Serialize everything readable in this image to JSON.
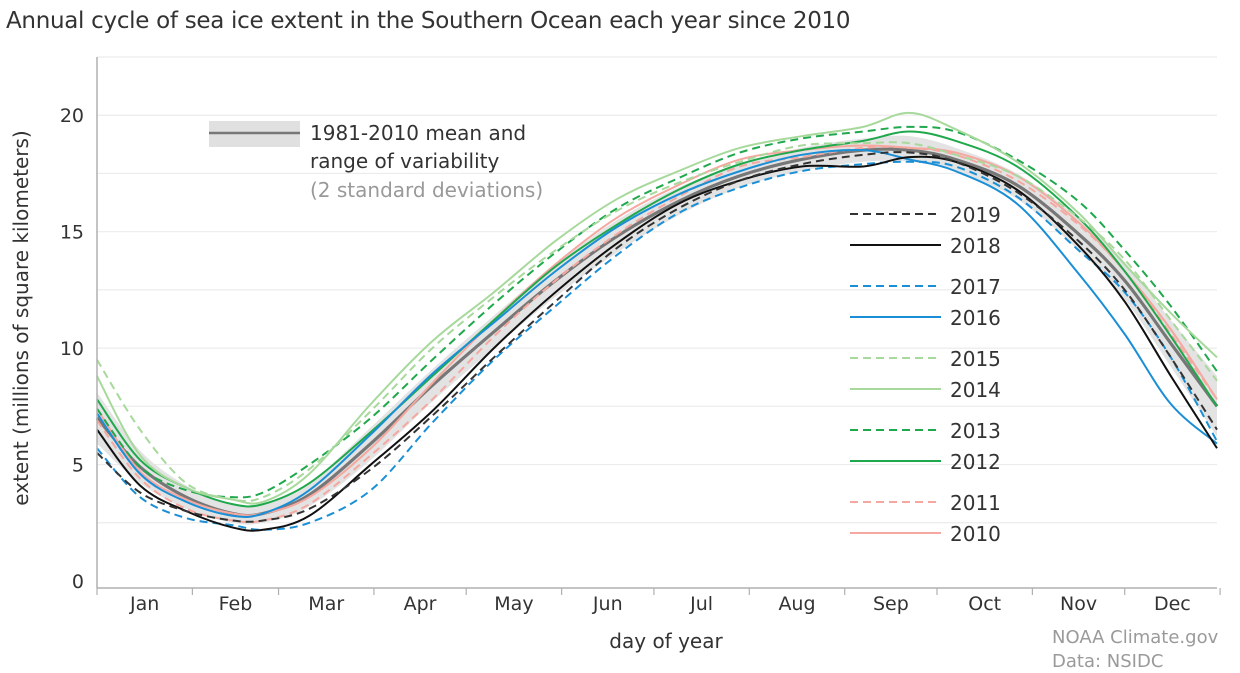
{
  "chart_data": {
    "type": "line",
    "title": "Annual cycle of sea ice extent in the Southern Ocean each year since 2010",
    "xlabel": "day of year",
    "ylabel": "extent (millions of square kilometers)",
    "xlim": [
      1,
      365
    ],
    "ylim": [
      0,
      22.5
    ],
    "yticks": [
      0,
      5,
      10,
      15,
      20
    ],
    "grid_y_step": 2.5,
    "months": [
      "Jan",
      "Feb",
      "Mar",
      "Apr",
      "May",
      "Jun",
      "Jul",
      "Aug",
      "Sep",
      "Oct",
      "Nov",
      "Dec"
    ],
    "month_starts": [
      1,
      32,
      60,
      91,
      121,
      152,
      182,
      213,
      244,
      274,
      305,
      335,
      366
    ],
    "legend_mean": {
      "line1": "1981-2010 mean and",
      "line2": "range of variability",
      "line3": "(2 standard deviations)"
    },
    "mean": {
      "name": "1981-2010 mean",
      "color": "#777777",
      "x": [
        1,
        15,
        30,
        45,
        55,
        70,
        90,
        110,
        130,
        150,
        170,
        190,
        210,
        230,
        250,
        265,
        280,
        300,
        320,
        335,
        350,
        365
      ],
      "y": [
        7.0,
        4.9,
        3.6,
        2.9,
        2.9,
        3.7,
        5.9,
        8.4,
        10.7,
        12.9,
        14.8,
        16.3,
        17.4,
        18.1,
        18.5,
        18.5,
        18.1,
        17.0,
        14.9,
        12.9,
        10.2,
        7.5
      ],
      "band_lower": [
        5.9,
        4.2,
        3.1,
        2.5,
        2.5,
        3.2,
        5.2,
        7.7,
        10.0,
        12.2,
        14.1,
        15.7,
        16.9,
        17.6,
        18.0,
        18.0,
        17.6,
        16.4,
        14.2,
        12.1,
        9.2,
        6.2
      ],
      "band_upper": [
        8.1,
        5.6,
        4.1,
        3.3,
        3.3,
        4.2,
        6.6,
        9.1,
        11.4,
        13.6,
        15.5,
        16.9,
        17.9,
        18.6,
        19.0,
        19.1,
        18.6,
        17.5,
        15.6,
        13.7,
        11.2,
        8.8
      ]
    },
    "series": [
      {
        "name": "2019",
        "color": "#333333",
        "dash": true,
        "x": [
          1,
          15,
          30,
          45,
          55,
          70,
          90,
          110,
          130,
          150,
          170,
          190,
          210,
          230,
          250,
          265,
          280,
          300,
          320,
          335,
          350,
          365
        ],
        "y": [
          5.5,
          3.8,
          3.0,
          2.6,
          2.6,
          3.1,
          4.8,
          7.1,
          9.6,
          12.0,
          14.3,
          16.0,
          17.2,
          17.9,
          18.3,
          18.4,
          18.0,
          16.7,
          14.6,
          12.5,
          9.6,
          6.5
        ]
      },
      {
        "name": "2018",
        "color": "#111111",
        "dash": false,
        "x": [
          1,
          15,
          30,
          45,
          55,
          70,
          90,
          110,
          130,
          150,
          170,
          190,
          210,
          230,
          250,
          265,
          280,
          300,
          320,
          335,
          350,
          365
        ],
        "y": [
          6.5,
          4.1,
          3.0,
          2.3,
          2.2,
          2.8,
          5.0,
          7.3,
          10.0,
          12.4,
          14.5,
          16.2,
          17.2,
          17.8,
          17.8,
          18.2,
          18.0,
          16.8,
          14.4,
          12.0,
          8.8,
          5.7
        ]
      },
      {
        "name": "2017",
        "color": "#1a8fd6",
        "dash": true,
        "x": [
          1,
          15,
          30,
          45,
          55,
          70,
          90,
          110,
          130,
          150,
          170,
          190,
          210,
          230,
          250,
          265,
          280,
          300,
          320,
          335,
          350,
          365
        ],
        "y": [
          5.7,
          3.6,
          2.7,
          2.4,
          2.2,
          2.5,
          3.9,
          6.8,
          9.5,
          11.8,
          14.0,
          15.8,
          16.9,
          17.6,
          17.9,
          18.0,
          17.8,
          16.5,
          14.2,
          12.4,
          9.6,
          6.0
        ]
      },
      {
        "name": "2016",
        "color": "#1a8fd6",
        "dash": false,
        "x": [
          1,
          15,
          30,
          45,
          55,
          70,
          90,
          110,
          130,
          150,
          170,
          190,
          210,
          230,
          250,
          265,
          280,
          300,
          320,
          335,
          350,
          365
        ],
        "y": [
          7.2,
          4.6,
          3.4,
          2.8,
          2.9,
          3.9,
          6.3,
          8.9,
          11.1,
          13.3,
          15.2,
          16.6,
          17.6,
          18.3,
          18.5,
          18.1,
          17.6,
          16.2,
          13.2,
          10.6,
          7.6,
          5.9
        ]
      },
      {
        "name": "2015",
        "color": "#a8d99c",
        "dash": true,
        "x": [
          1,
          15,
          30,
          45,
          55,
          70,
          90,
          110,
          130,
          150,
          170,
          190,
          210,
          230,
          250,
          265,
          280,
          300,
          320,
          335,
          350,
          365
        ],
        "y": [
          9.5,
          6.5,
          4.2,
          3.5,
          3.6,
          4.8,
          7.3,
          10.0,
          12.2,
          14.2,
          15.9,
          17.1,
          18.0,
          18.7,
          18.8,
          18.8,
          18.3,
          17.4,
          15.6,
          13.8,
          11.2,
          8.6
        ]
      },
      {
        "name": "2014",
        "color": "#a8d99c",
        "dash": false,
        "x": [
          1,
          15,
          30,
          45,
          55,
          70,
          90,
          110,
          130,
          150,
          170,
          190,
          210,
          230,
          250,
          265,
          280,
          300,
          320,
          335,
          350,
          365
        ],
        "y": [
          8.8,
          5.4,
          4.0,
          3.5,
          3.4,
          4.6,
          7.6,
          10.3,
          12.4,
          14.6,
          16.4,
          17.6,
          18.6,
          19.1,
          19.5,
          20.1,
          19.4,
          18.0,
          15.8,
          13.6,
          11.5,
          9.6
        ]
      },
      {
        "name": "2013",
        "color": "#1fa84c",
        "dash": true,
        "x": [
          1,
          15,
          30,
          45,
          55,
          70,
          90,
          110,
          130,
          150,
          170,
          190,
          210,
          230,
          250,
          265,
          280,
          300,
          320,
          335,
          350,
          365
        ],
        "y": [
          7.4,
          4.9,
          3.9,
          3.6,
          3.8,
          5.0,
          7.0,
          9.5,
          11.9,
          14.1,
          16.0,
          17.3,
          18.4,
          19.0,
          19.3,
          19.5,
          19.3,
          18.1,
          16.3,
          14.2,
          11.8,
          9.0
        ]
      },
      {
        "name": "2012",
        "color": "#1fa84c",
        "dash": false,
        "x": [
          1,
          15,
          30,
          45,
          55,
          70,
          90,
          110,
          130,
          150,
          170,
          190,
          210,
          230,
          250,
          265,
          280,
          300,
          320,
          335,
          350,
          365
        ],
        "y": [
          7.8,
          5.2,
          4.0,
          3.3,
          3.3,
          4.2,
          6.4,
          8.8,
          11.2,
          13.5,
          15.3,
          16.8,
          17.9,
          18.5,
          18.9,
          19.3,
          18.9,
          17.8,
          15.6,
          13.3,
          10.5,
          7.5
        ]
      },
      {
        "name": "2011",
        "color": "#f4a8a0",
        "dash": true,
        "x": [
          1,
          15,
          30,
          45,
          55,
          70,
          90,
          110,
          130,
          150,
          170,
          190,
          210,
          230,
          250,
          265,
          280,
          300,
          320,
          335,
          350,
          365
        ],
        "y": [
          6.9,
          4.4,
          3.1,
          2.6,
          2.6,
          3.3,
          5.4,
          7.8,
          10.5,
          12.9,
          14.9,
          16.5,
          17.8,
          18.2,
          18.6,
          18.6,
          18.3,
          17.2,
          15.3,
          13.3,
          10.6,
          7.8
        ]
      },
      {
        "name": "2010",
        "color": "#f4a8a0",
        "dash": false,
        "x": [
          1,
          15,
          30,
          45,
          55,
          70,
          90,
          110,
          130,
          150,
          170,
          190,
          210,
          230,
          250,
          265,
          280,
          300,
          320,
          335,
          350,
          365
        ],
        "y": [
          7.4,
          4.7,
          3.5,
          2.9,
          2.9,
          3.6,
          5.7,
          8.5,
          11.2,
          13.6,
          15.6,
          17.0,
          18.1,
          18.5,
          18.7,
          18.6,
          18.4,
          17.4,
          15.4,
          13.3,
          10.8,
          7.8
        ]
      }
    ],
    "legend_groups": [
      [
        "2019",
        "2018"
      ],
      [
        "2017",
        "2016"
      ],
      [
        "2015",
        "2014"
      ],
      [
        "2013",
        "2012"
      ],
      [
        "2011",
        "2010"
      ]
    ],
    "grid": true,
    "legend_placement": "inside-right"
  },
  "credits": {
    "line1": "NOAA Climate.gov",
    "line2": "Data: NSIDC"
  }
}
